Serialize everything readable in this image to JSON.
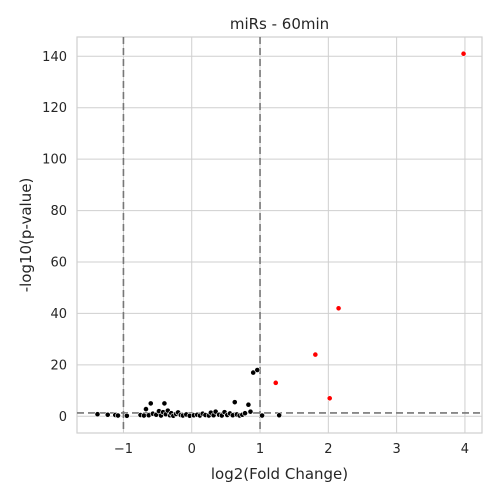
{
  "chart_data": {
    "type": "scatter",
    "title": "miRs - 60min",
    "xlabel": "log2(Fold Change)",
    "ylabel": "-log10(p-value)",
    "xlim": [
      -1.68,
      4.25
    ],
    "ylim": [
      -6.5,
      147.5
    ],
    "xticks": [
      -1,
      0,
      1,
      2,
      3,
      4
    ],
    "xtick_labels": [
      "−1",
      "0",
      "1",
      "2",
      "3",
      "4"
    ],
    "yticks": [
      0,
      20,
      40,
      60,
      80,
      100,
      120,
      140
    ],
    "ytick_labels": [
      "0",
      "20",
      "40",
      "60",
      "80",
      "100",
      "120",
      "140"
    ],
    "grid": true,
    "thresholds": {
      "x": [
        -1,
        1
      ],
      "y": 1.3
    },
    "colors": {
      "significant": "#ff0000",
      "not_significant": "#000000",
      "point_edge": "#ffffff",
      "threshold": "#777777",
      "grid": "#cfcfcf"
    },
    "significant": [
      {
        "x": 3.98,
        "y": 141.0
      },
      {
        "x": 2.15,
        "y": 42.0
      },
      {
        "x": 1.81,
        "y": 24.0
      },
      {
        "x": 1.23,
        "y": 13.0
      },
      {
        "x": 2.02,
        "y": 7.0
      }
    ],
    "not_significant": [
      {
        "x": -1.38,
        "y": 0.8
      },
      {
        "x": -1.23,
        "y": 0.6
      },
      {
        "x": -1.12,
        "y": 0.5
      },
      {
        "x": -1.08,
        "y": 0.3
      },
      {
        "x": -0.95,
        "y": 0.2
      },
      {
        "x": -0.75,
        "y": 0.5
      },
      {
        "x": -0.7,
        "y": 0.3
      },
      {
        "x": -0.67,
        "y": 2.8
      },
      {
        "x": -0.63,
        "y": 0.4
      },
      {
        "x": -0.6,
        "y": 5.0
      },
      {
        "x": -0.57,
        "y": 1.0
      },
      {
        "x": -0.52,
        "y": 0.6
      },
      {
        "x": -0.48,
        "y": 2.0
      },
      {
        "x": -0.45,
        "y": 0.3
      },
      {
        "x": -0.42,
        "y": 1.6
      },
      {
        "x": -0.4,
        "y": 5.0
      },
      {
        "x": -0.38,
        "y": 0.8
      },
      {
        "x": -0.35,
        "y": 2.2
      },
      {
        "x": -0.32,
        "y": 0.4
      },
      {
        "x": -0.3,
        "y": 1.2
      },
      {
        "x": -0.27,
        "y": 0.2
      },
      {
        "x": -0.23,
        "y": 0.9
      },
      {
        "x": -0.2,
        "y": 1.5
      },
      {
        "x": -0.16,
        "y": 0.5
      },
      {
        "x": -0.13,
        "y": 0.3
      },
      {
        "x": -0.08,
        "y": 0.7
      },
      {
        "x": -0.03,
        "y": 0.2
      },
      {
        "x": 0.03,
        "y": 0.4
      },
      {
        "x": 0.08,
        "y": 0.6
      },
      {
        "x": 0.12,
        "y": 0.3
      },
      {
        "x": 0.16,
        "y": 1.0
      },
      {
        "x": 0.2,
        "y": 0.5
      },
      {
        "x": 0.25,
        "y": 0.3
      },
      {
        "x": 0.28,
        "y": 1.4
      },
      {
        "x": 0.32,
        "y": 0.4
      },
      {
        "x": 0.35,
        "y": 1.8
      },
      {
        "x": 0.4,
        "y": 0.6
      },
      {
        "x": 0.44,
        "y": 0.3
      },
      {
        "x": 0.48,
        "y": 1.6
      },
      {
        "x": 0.52,
        "y": 0.5
      },
      {
        "x": 0.56,
        "y": 1.1
      },
      {
        "x": 0.6,
        "y": 0.4
      },
      {
        "x": 0.63,
        "y": 5.5
      },
      {
        "x": 0.66,
        "y": 0.7
      },
      {
        "x": 0.7,
        "y": 0.3
      },
      {
        "x": 0.74,
        "y": 0.6
      },
      {
        "x": 0.78,
        "y": 1.2
      },
      {
        "x": 0.83,
        "y": 4.5
      },
      {
        "x": 0.86,
        "y": 1.8
      },
      {
        "x": 0.9,
        "y": 17.0
      },
      {
        "x": 0.96,
        "y": 18.0
      },
      {
        "x": 1.03,
        "y": 0.3
      },
      {
        "x": 1.28,
        "y": 0.4
      }
    ]
  }
}
